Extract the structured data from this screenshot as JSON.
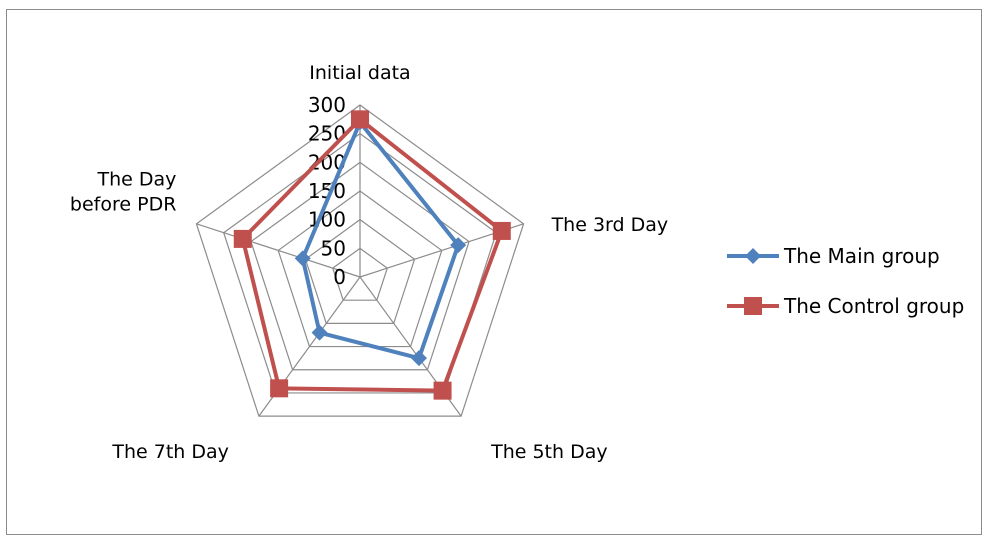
{
  "chart_data": {
    "type": "radar",
    "axes": [
      "Initial data",
      "The 3rd Day",
      "The 5th Day",
      "The 7th Day",
      "The Day before PDR"
    ],
    "axis_label_lines": [
      [
        "Initial data"
      ],
      [
        "The 3rd Day"
      ],
      [
        "The 5th Day"
      ],
      [
        "The 7th Day"
      ],
      [
        "The Day",
        "before PDR"
      ]
    ],
    "rmin": 0,
    "rmax": 300,
    "ticks": [
      "0",
      "50",
      "100",
      "150",
      "200",
      "250",
      "300"
    ],
    "grid": true,
    "legend_position": "right",
    "series": [
      {
        "name": "The Main group",
        "color": "#4f81bd",
        "marker": "diamond",
        "values": [
          270,
          180,
          175,
          120,
          105
        ]
      },
      {
        "name": "The Control group",
        "color": "#c0504d",
        "marker": "square",
        "values": [
          275,
          260,
          245,
          240,
          215
        ]
      }
    ]
  }
}
